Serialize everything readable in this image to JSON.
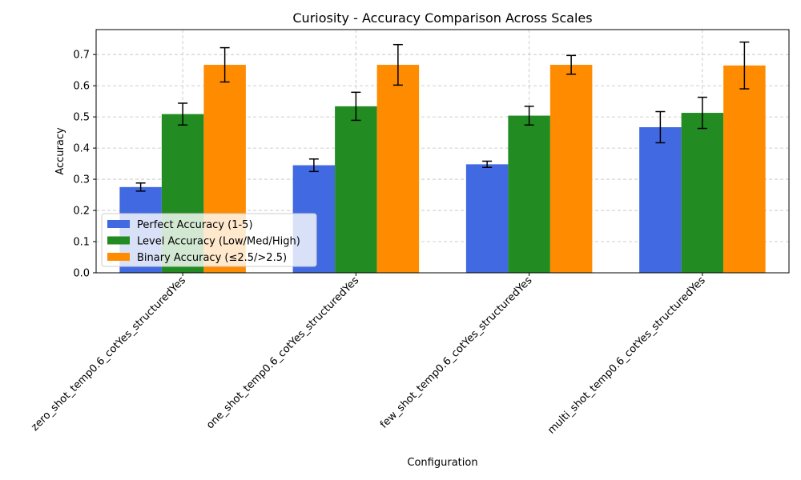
{
  "chart_data": {
    "type": "bar",
    "title": "Curiosity - Accuracy Comparison Across Scales",
    "xlabel": "Configuration",
    "ylabel": "Accuracy",
    "ylim": [
      0,
      0.78
    ],
    "yticks": [
      0.0,
      0.1,
      0.2,
      0.3,
      0.4,
      0.5,
      0.6,
      0.7
    ],
    "grid": true,
    "legend_position": "lower-left",
    "categories": [
      "zero_shot_temp0.6_cotYes_structuredYes",
      "one_shot_temp0.6_cotYes_structuredYes",
      "few_shot_temp0.6_cotYes_structuredYes",
      "multi_shot_temp0.6_cotYes_structuredYes"
    ],
    "series": [
      {
        "name": "Perfect Accuracy (1-5)",
        "color": "#4169e1",
        "values": [
          0.275,
          0.345,
          0.348,
          0.467
        ],
        "errors": [
          0.013,
          0.02,
          0.01,
          0.05
        ]
      },
      {
        "name": "Level Accuracy (Low/Med/High)",
        "color": "#228b22",
        "values": [
          0.509,
          0.534,
          0.504,
          0.513
        ],
        "errors": [
          0.035,
          0.045,
          0.03,
          0.05
        ]
      },
      {
        "name": "Binary Accuracy (≤2.5/>2.5)",
        "color": "#ff8c00",
        "values": [
          0.667,
          0.667,
          0.667,
          0.665
        ],
        "errors": [
          0.055,
          0.065,
          0.03,
          0.075
        ]
      }
    ]
  }
}
